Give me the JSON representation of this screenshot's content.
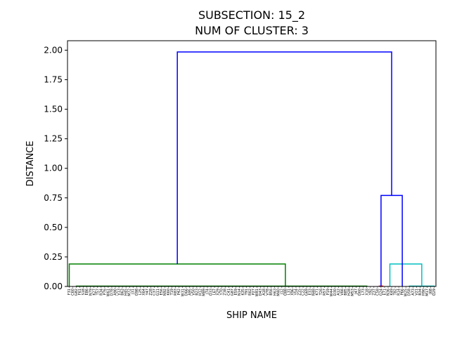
{
  "chart_data": {
    "type": "dendrogram",
    "title_lines": [
      "SUBSECTION: 15_2",
      "NUM OF CLUSTER: 3"
    ],
    "xlabel": "SHIP NAME",
    "ylabel": "DISTANCE",
    "ylim": [
      0,
      2.08
    ],
    "y_ticks": [
      "0.00",
      "0.25",
      "0.50",
      "0.75",
      "1.00",
      "1.25",
      "1.50",
      "1.75",
      "2.00"
    ],
    "y_tick_values": [
      0,
      0.25,
      0.5,
      0.75,
      1.0,
      1.25,
      1.5,
      1.75,
      2.0
    ],
    "leaf_count": 104,
    "leaves": [
      "F31",
      "C60",
      "G82",
      "F61",
      "S18",
      "E86",
      "N79",
      "K27",
      "T57",
      "R34",
      "P76",
      "W61",
      "D78",
      "A90",
      "V13",
      "B63",
      "H45",
      "M72",
      "J31",
      "Q98",
      "L25",
      "X64",
      "Y47",
      "Z28",
      "C37",
      "G11",
      "E56",
      "N92",
      "K60",
      "T19",
      "R83",
      "P42",
      "W31",
      "D66",
      "A95",
      "V50",
      "B23",
      "H12",
      "M89",
      "J74",
      "Q33",
      "L67",
      "X29",
      "Y70",
      "Z38",
      "C41",
      "G87",
      "E59",
      "N14",
      "K35",
      "T91",
      "R62",
      "P27",
      "W81",
      "D43",
      "A18",
      "V78",
      "B56",
      "H63",
      "M40",
      "J12",
      "Q88",
      "L31",
      "X96",
      "Y54",
      "Z15",
      "C22",
      "G69",
      "E33",
      "N48",
      "K71",
      "T26",
      "R57",
      "P19",
      "W44",
      "D30",
      "A12",
      "V66",
      "B85",
      "H28",
      "M53",
      "J47",
      "Q60",
      "L73",
      "X18",
      "Y92",
      "Z37",
      "C58",
      "G24",
      "E71",
      "N36",
      "K49",
      "T82",
      "R14",
      "P66",
      "W25",
      "D58",
      "A73",
      "V21",
      "B34",
      "H90",
      "M17",
      "J68",
      "Q29"
    ],
    "links": [
      {
        "a": 2,
        "b": 84,
        "h": 0.003,
        "color": "#008000"
      },
      {
        "a": 87.5,
        "b": 88.5,
        "h": 0.003,
        "color": "#ff0000"
      },
      {
        "a": 96,
        "b": 103,
        "h": 0.003,
        "color": "#00bfbf"
      },
      {
        "a": 0,
        "b": 61,
        "h": 0.19,
        "color": "#008000"
      },
      {
        "a": 90.5,
        "b": 99.5,
        "h": 0.19,
        "color": "#00bfbf"
      },
      {
        "a": 88,
        "b": 94,
        "h": 0.77,
        "color": "#0000ff"
      },
      {
        "a": 30.5,
        "b": 91,
        "h": 1.985,
        "color": "#0000ff"
      }
    ]
  }
}
